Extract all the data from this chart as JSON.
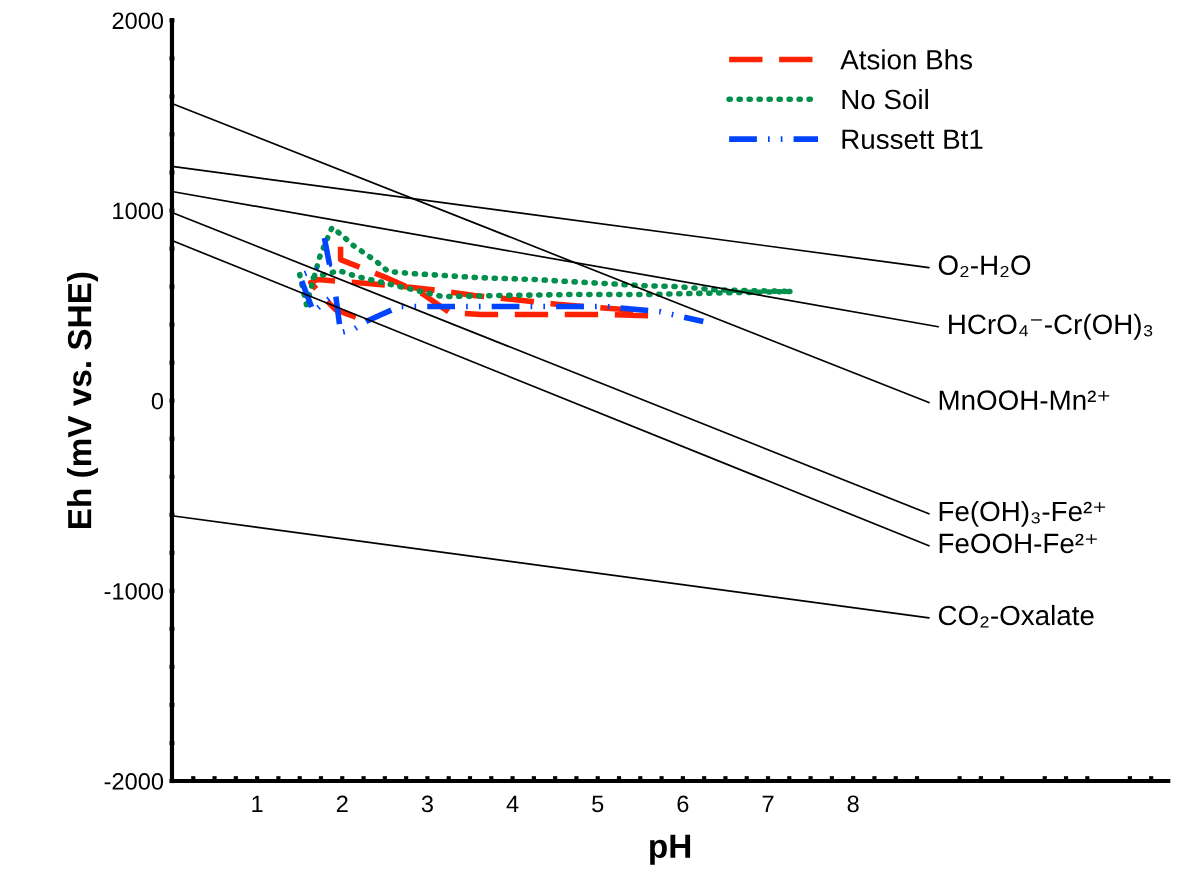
{
  "chart_data": {
    "type": "line",
    "xlabel": "pH",
    "ylabel": "Eh (mV vs. SHE)",
    "xlim": [
      0,
      11.7
    ],
    "ylim": [
      -2000,
      2000
    ],
    "xticks": [
      {
        "value": 0.25,
        "label": null
      },
      {
        "value": 0.5,
        "label": null
      },
      {
        "value": 0.75,
        "label": null
      },
      1,
      {
        "value": 1.25,
        "label": null
      },
      {
        "value": 1.5,
        "label": null
      },
      {
        "value": 1.75,
        "label": null
      },
      2,
      {
        "value": 2.25,
        "label": null
      },
      {
        "value": 2.5,
        "label": null
      },
      {
        "value": 2.75,
        "label": null
      },
      3,
      {
        "value": 3.25,
        "label": null
      },
      {
        "value": 3.5,
        "label": null
      },
      {
        "value": 3.75,
        "label": null
      },
      4,
      {
        "value": 4.25,
        "label": null
      },
      {
        "value": 4.5,
        "label": null
      },
      {
        "value": 4.75,
        "label": null
      },
      5,
      {
        "value": 5.25,
        "label": null
      },
      {
        "value": 5.5,
        "label": null
      },
      {
        "value": 5.75,
        "label": null
      },
      6,
      {
        "value": 6.25,
        "label": null
      },
      {
        "value": 6.5,
        "label": null
      },
      {
        "value": 6.75,
        "label": null
      },
      7,
      {
        "value": 7.25,
        "label": null
      },
      {
        "value": 7.5,
        "label": null
      },
      {
        "value": 7.75,
        "label": null
      },
      8,
      {
        "value": 8.25,
        "label": null
      },
      {
        "value": 8.5,
        "label": null
      },
      {
        "value": 8.75,
        "label": null
      },
      {
        "value": 9.25,
        "label": null
      },
      {
        "value": 9.5,
        "label": null
      },
      {
        "value": 9.75,
        "label": null
      },
      {
        "value": 10.25,
        "label": null
      },
      {
        "value": 10.5,
        "label": null
      },
      {
        "value": 10.75,
        "label": null
      },
      {
        "value": 11.25,
        "label": null
      },
      {
        "value": 11.5,
        "label": null
      }
    ],
    "yticks": [
      -2000,
      {
        "value": -1800,
        "label": null
      },
      {
        "value": -1600,
        "label": null
      },
      {
        "value": -1400,
        "label": null
      },
      {
        "value": -1200,
        "label": null
      },
      -1000,
      {
        "value": -800,
        "label": null
      },
      {
        "value": -600,
        "label": null
      },
      {
        "value": -400,
        "label": null
      },
      {
        "value": -200,
        "label": null
      },
      0,
      {
        "value": 200,
        "label": null
      },
      {
        "value": 400,
        "label": null
      },
      {
        "value": 600,
        "label": null
      },
      {
        "value": 800,
        "label": null
      },
      1000,
      {
        "value": 1200,
        "label": null
      },
      {
        "value": 1400,
        "label": null
      },
      {
        "value": 1600,
        "label": null
      },
      {
        "value": 1800,
        "label": null
      },
      2000
    ],
    "grid": false,
    "legend": "top right",
    "series": [
      {
        "name": "Atsion Bhs",
        "color": "#ff2200",
        "line_style": "dashed",
        "x": [
          1.98,
          1.98,
          2.5,
          2.95,
          3.26,
          3.63,
          5.1,
          5.6,
          5.31,
          4.56,
          4.01,
          3.55,
          3.13,
          2.72,
          2.3,
          1.71,
          1.63,
          1.79,
          1.92,
          2.17
        ],
        "values": [
          810,
          742,
          650,
          560,
          463,
          453,
          453,
          447,
          479,
          505,
          532,
          553,
          579,
          600,
          616,
          637,
          621,
          537,
          479,
          437
        ]
      },
      {
        "name": "No Soil",
        "color": "#00904c",
        "line_style": "dotted",
        "x": [
          1.5,
          1.58,
          1.74,
          1.88,
          2.0,
          2.13,
          2.25,
          2.4,
          2.54,
          2.84,
          3.21,
          3.6,
          3.93,
          4.27,
          4.68,
          5.1,
          5.52,
          5.94,
          6.35,
          6.78,
          7.28,
          6.06,
          5.52,
          4.68,
          3.85,
          3.18,
          2.17,
          1.96,
          1.66
        ],
        "values": [
          663,
          505,
          763,
          911,
          868,
          816,
          779,
          732,
          679,
          668,
          658,
          647,
          642,
          637,
          626,
          616,
          605,
          600,
          584,
          579,
          574,
          563,
          558,
          558,
          553,
          547,
          653,
          684,
          647
        ]
      },
      {
        "name": "Russett Bt1",
        "color": "#0044ff",
        "line_style": "dashdotdot",
        "x": [
          1.79,
          1.85,
          1.5,
          1.58,
          1.66,
          1.92,
          1.98,
          2.13,
          2.28,
          2.46,
          2.67,
          2.88,
          3.42,
          4.27,
          5.1,
          5.73,
          6.24
        ],
        "values": [
          855,
          716,
          658,
          563,
          468,
          563,
          358,
          374,
          416,
          453,
          495,
          495,
          495,
          495,
          495,
          468,
          416
        ]
      },
      {
        "name": "O₂-H₂O",
        "color": "#000000",
        "line_style": "solid",
        "x": [
          0,
          8.89
        ],
        "values": [
          1232,
          700
        ]
      },
      {
        "name": "HCrO₄⁻-Cr(OH)₃",
        "color": "#000000",
        "line_style": "solid",
        "x": [
          0,
          9.0
        ],
        "values": [
          1100,
          389
        ]
      },
      {
        "name": "MnOOH-Mn²⁺",
        "color": "#000000",
        "line_style": "solid",
        "x": [
          0,
          8.89
        ],
        "values": [
          1563,
          -10
        ]
      },
      {
        "name": "Fe(OH)₃-Fe²⁺",
        "color": "#000000",
        "line_style": "solid",
        "x": [
          0,
          8.89
        ],
        "values": [
          990,
          -595
        ]
      },
      {
        "name": "FeOOH-Fe²⁺",
        "color": "#000000",
        "line_style": "solid",
        "x": [
          0,
          8.89
        ],
        "values": [
          842,
          -763
        ]
      },
      {
        "name": "CO₂-Oxalate",
        "color": "#000000",
        "line_style": "solid",
        "x": [
          0,
          8.89
        ],
        "values": [
          -605,
          -1142
        ]
      }
    ]
  }
}
